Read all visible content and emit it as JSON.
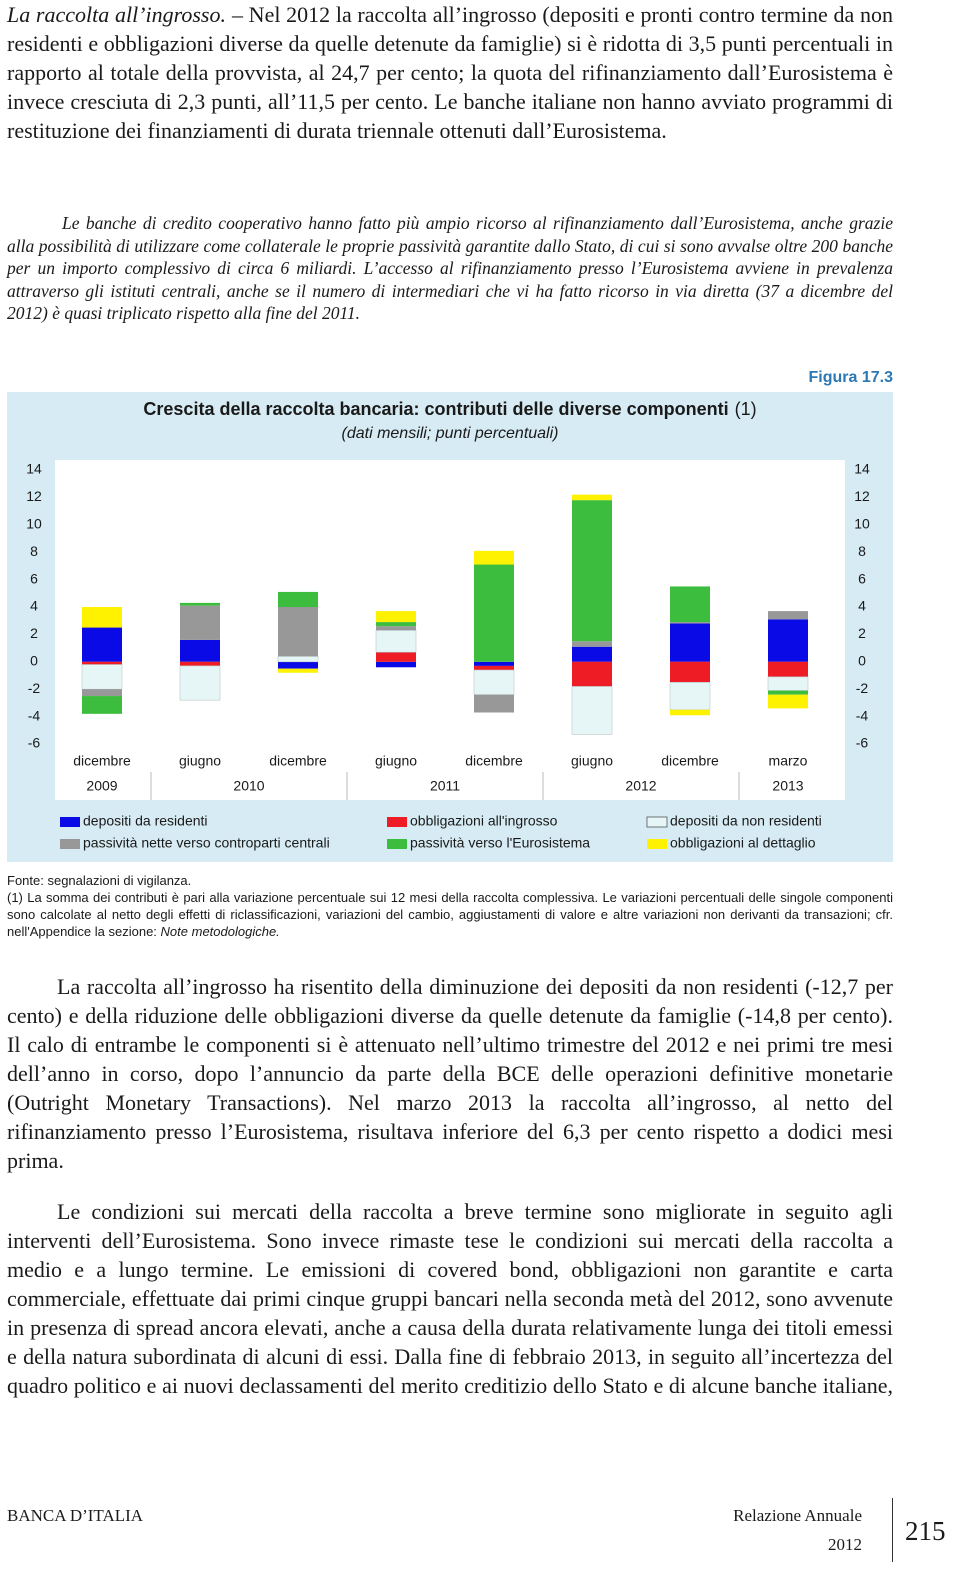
{
  "paragraphs": [
    {
      "lead": "La raccolta all’ingrosso.",
      "text": "– Nel 2012 la raccolta all’ingrosso (depositi e pronti contro termine da non residenti e obbligazioni diverse da quelle detenute da famiglie) si è ridotta di 3,5 punti percentuali in rapporto al totale della provvista, al 24,7 per cento; la quota del rifinanziamento dall’Eurosistema è invece cresciuta di 2,3 punti, all’11,5 per cento. Le banche italiane non hanno avviato programmi di restituzione dei finanziamenti di durata triennale ottenuti dall’Eurosistema."
    },
    {
      "text": "Le banche di credito cooperativo hanno fatto più ampio ricorso al rifinanziamento dall’Eurosistema, anche grazie alla possibilità di utilizzare come collaterale le proprie passività garantite dallo Stato, di cui si sono avvalse oltre 200 banche per un importo complessivo di circa 6 miliardi. L’accesso al rifinanziamento presso l’Eurosistema avviene in prevalenza attraverso gli istituti centrali, anche se il numero di intermediari che vi ha fatto ricorso in via diretta (37 a dicembre del 2012) è quasi triplicato rispetto alla fine del 2011."
    },
    {
      "text": "La raccolta all’ingrosso ha risentito della diminuzione dei depositi da non residenti (-12,7 per cento) e della riduzione delle obbligazioni diverse da quelle detenute da famiglie (-14,8 per cento). Il calo di entrambe le componenti si è attenuato nell’ultimo trimestre del 2012 e nei primi tre mesi dell’anno in corso, dopo l’annuncio da parte della BCE delle operazioni definitive monetarie (Outright Monetary Transactions). Nel marzo 2013 la raccolta all’ingrosso, al netto del rifinanziamento presso l’Eurosistema, risultava inferiore del 6,3 per cento rispetto a dodici mesi prima."
    },
    {
      "text": "Le condizioni sui mercati della raccolta a breve termine sono migliorate in seguito agli interventi dell’Eurosistema. Sono invece rimaste tese le condizioni sui mercati della raccolta a medio e a lungo termine. Le emissioni di covered bond, obbligazioni non garantite e carta commerciale, effettuate dai primi cinque gruppi bancari nella seconda metà del 2012, sono avvenute in presenza di spread ancora elevati, anche a causa della durata relativamente lunga dei titoli emessi e della natura subordinata di alcuni di essi. Dalla fine di febbraio 2013, in seguito all’incertezza del quadro politico e ai nuovi declassamenti del merito creditizio dello Stato e di alcune banche italiane,"
    }
  ],
  "figure": {
    "label": "Figura 17.3",
    "source": "Fonte: segnalazioni di vigilanza.",
    "note": "(1) La somma dei contributi è pari alla variazione percentuale sui 12 mesi della raccolta complessiva. Le variazioni percentuali delle singole componenti sono calcolate al netto degli effetti di riclassificazioni, variazioni del cambio, aggiustamenti di valore e altre variazioni non derivanti da transazioni; cfr. nell'Appendice la sezione:",
    "note_ref": "Note metodologiche."
  },
  "chart_data": {
    "type": "stacked-bar",
    "title": "Crescita della raccolta bancaria: contributi delle diverse componenti",
    "title_note": "(1)",
    "subtitle": "(dati mensili; punti percentuali)",
    "categories": [
      "dicembre",
      "giugno",
      "dicembre",
      "giugno",
      "dicembre",
      "giugno",
      "dicembre",
      "marzo"
    ],
    "years": [
      "2009",
      "2010",
      "2011",
      "2012",
      "2013"
    ],
    "ylim": [
      -6,
      14
    ],
    "yticks": [
      -6,
      -4,
      -2,
      0,
      2,
      4,
      6,
      8,
      10,
      12,
      14
    ],
    "grid": false,
    "series": [
      {
        "name": "depositi da residenti",
        "color": "#0a0ae6",
        "values": [
          2.5,
          1.6,
          -0.5,
          -0.4,
          -0.3,
          1.1,
          2.8,
          3.1
        ]
      },
      {
        "name": "obbligazioni all'ingrosso",
        "color": "#ee1c24",
        "values": [
          -0.2,
          -0.3,
          0,
          0.7,
          -0.3,
          -1.8,
          -1.5,
          -1.1
        ]
      },
      {
        "name": "depositi da non residenti",
        "color": "#e6f6f6",
        "values": [
          -1.8,
          -2.5,
          0.4,
          1.6,
          -1.8,
          -3.5,
          -2.0,
          -1.0
        ]
      },
      {
        "name": "passività nette verso controparti centrali",
        "color": "#989898",
        "values": [
          -0.5,
          2.5,
          3.6,
          0.3,
          -1.3,
          0.4,
          0.1,
          0.6
        ]
      },
      {
        "name": "passività verso l'Eurosistema",
        "color": "#3dbd3d",
        "values": [
          -1.3,
          0.2,
          1.1,
          0.3,
          7.1,
          10.3,
          2.6,
          -0.3
        ]
      },
      {
        "name": "obbligazioni al dettaglio",
        "color": "#fff200",
        "values": [
          1.5,
          0,
          -0.3,
          0.8,
          1.0,
          0.4,
          -0.4,
          -1.0
        ]
      }
    ]
  },
  "footer": {
    "left": "BANCA D’ITALIA",
    "report": "Relazione Annuale",
    "year": "2012",
    "page": "215"
  }
}
